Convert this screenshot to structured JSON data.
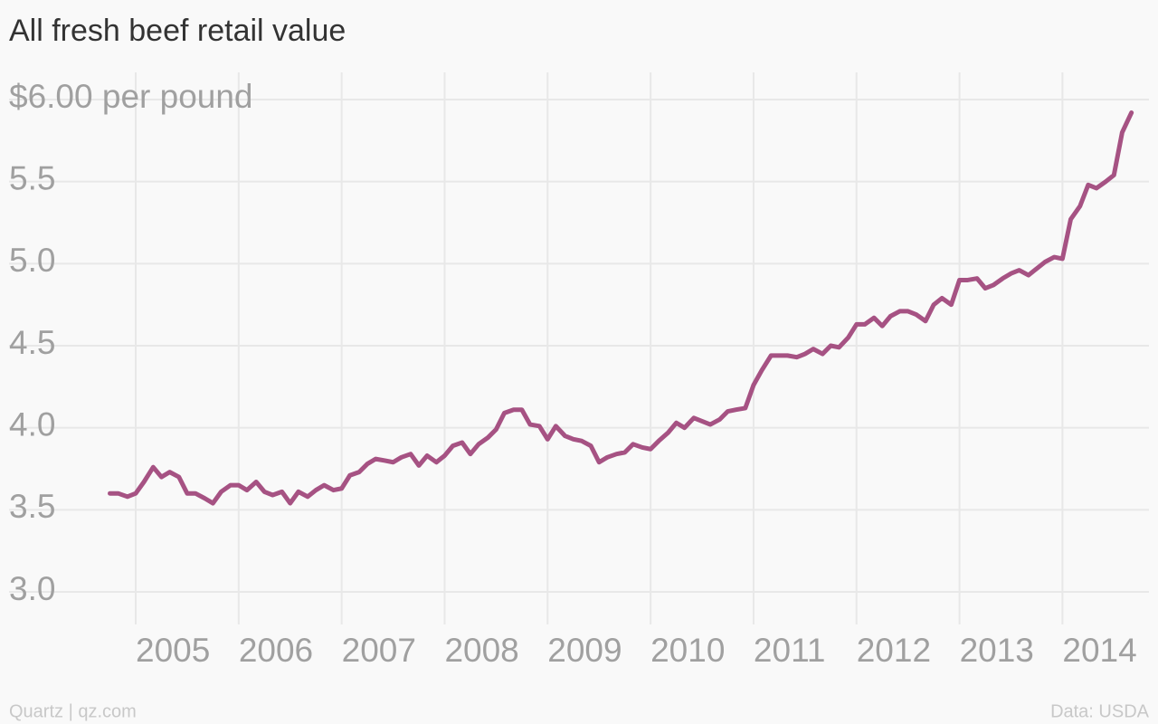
{
  "chart_data": {
    "type": "line",
    "title": "All fresh beef retail value",
    "credit": "Quartz | qz.com",
    "source": "Data: USDA",
    "x": [
      2004.75,
      2004.83,
      2004.92,
      2005.0,
      2005.08,
      2005.17,
      2005.25,
      2005.33,
      2005.42,
      2005.5,
      2005.58,
      2005.67,
      2005.75,
      2005.83,
      2005.92,
      2006.0,
      2006.08,
      2006.17,
      2006.25,
      2006.33,
      2006.42,
      2006.5,
      2006.58,
      2006.67,
      2006.75,
      2006.83,
      2006.92,
      2007.0,
      2007.08,
      2007.17,
      2007.25,
      2007.33,
      2007.42,
      2007.5,
      2007.58,
      2007.67,
      2007.75,
      2007.83,
      2007.92,
      2008.0,
      2008.08,
      2008.17,
      2008.25,
      2008.33,
      2008.42,
      2008.5,
      2008.58,
      2008.67,
      2008.75,
      2008.83,
      2008.92,
      2009.0,
      2009.08,
      2009.17,
      2009.25,
      2009.33,
      2009.42,
      2009.5,
      2009.58,
      2009.67,
      2009.75,
      2009.83,
      2009.92,
      2010.0,
      2010.08,
      2010.17,
      2010.25,
      2010.33,
      2010.42,
      2010.5,
      2010.58,
      2010.67,
      2010.75,
      2010.83,
      2010.92,
      2011.0,
      2011.08,
      2011.17,
      2011.25,
      2011.33,
      2011.42,
      2011.5,
      2011.58,
      2011.67,
      2011.75,
      2011.83,
      2011.92,
      2012.0,
      2012.08,
      2012.17,
      2012.25,
      2012.33,
      2012.42,
      2012.5,
      2012.58,
      2012.67,
      2012.75,
      2012.83,
      2012.92,
      2013.0,
      2013.08,
      2013.17,
      2013.25,
      2013.33,
      2013.42,
      2013.5,
      2013.58,
      2013.67,
      2013.75,
      2013.83,
      2013.92,
      2014.0,
      2014.08,
      2014.17,
      2014.25,
      2014.33,
      2014.42,
      2014.5,
      2014.58,
      2014.67
    ],
    "series": [
      {
        "name": "All fresh beef retail value",
        "color": "#a65283",
        "values": [
          3.6,
          3.6,
          3.58,
          3.6,
          3.67,
          3.76,
          3.7,
          3.73,
          3.7,
          3.6,
          3.6,
          3.57,
          3.54,
          3.61,
          3.65,
          3.65,
          3.62,
          3.67,
          3.61,
          3.59,
          3.61,
          3.54,
          3.61,
          3.58,
          3.62,
          3.65,
          3.62,
          3.63,
          3.71,
          3.73,
          3.78,
          3.81,
          3.8,
          3.79,
          3.82,
          3.84,
          3.77,
          3.83,
          3.79,
          3.83,
          3.89,
          3.91,
          3.84,
          3.9,
          3.94,
          3.99,
          4.09,
          4.11,
          4.11,
          4.02,
          4.01,
          3.93,
          4.01,
          3.95,
          3.93,
          3.92,
          3.89,
          3.79,
          3.82,
          3.84,
          3.85,
          3.9,
          3.88,
          3.87,
          3.92,
          3.97,
          4.03,
          4.0,
          4.06,
          4.04,
          4.02,
          4.05,
          4.1,
          4.11,
          4.12,
          4.26,
          4.35,
          4.44,
          4.44,
          4.44,
          4.43,
          4.45,
          4.48,
          4.45,
          4.5,
          4.49,
          4.55,
          4.63,
          4.63,
          4.67,
          4.62,
          4.68,
          4.71,
          4.71,
          4.69,
          4.65,
          4.75,
          4.79,
          4.75,
          4.9,
          4.9,
          4.91,
          4.85,
          4.87,
          4.91,
          4.94,
          4.96,
          4.93,
          4.97,
          5.01,
          5.04,
          5.03,
          5.27,
          5.35,
          5.48,
          5.46,
          5.5,
          5.54,
          5.8,
          5.92
        ]
      }
    ],
    "xlim": [
      2003.77,
      2014.84
    ],
    "xticks": [
      2005,
      2006,
      2007,
      2008,
      2009,
      2010,
      2011,
      2012,
      2013,
      2014
    ],
    "ylim": [
      3,
      6
    ],
    "yticks": [
      {
        "value": 3,
        "label": "3.0"
      },
      3.5,
      {
        "value": 4,
        "label": "4.0"
      },
      4.5,
      {
        "value": 5,
        "label": "5.0"
      },
      5.5,
      {
        "value": 6,
        "label": "$6.00 per pound"
      }
    ],
    "grid": true
  }
}
